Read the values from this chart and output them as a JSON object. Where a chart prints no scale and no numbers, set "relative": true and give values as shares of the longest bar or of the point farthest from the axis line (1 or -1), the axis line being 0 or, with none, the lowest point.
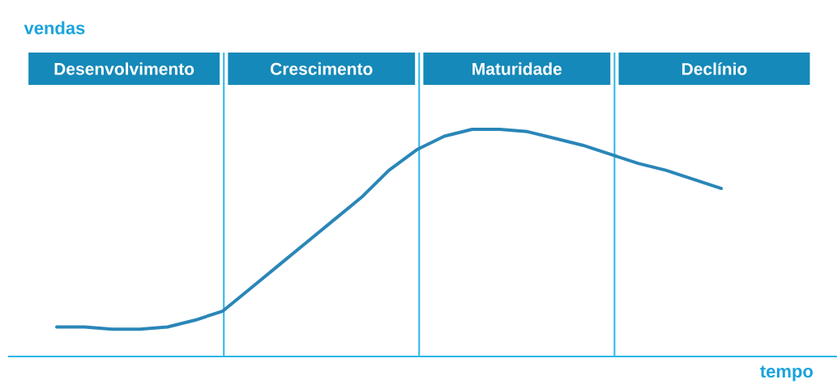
{
  "chart_data": {
    "type": "line",
    "relative": true,
    "xlabel": "tempo",
    "color": "#2a86b8",
    "line_style": "solid",
    "categories": [
      null,
      null,
      null,
      null,
      null,
      null,
      null,
      null,
      null,
      null,
      null,
      null,
      null,
      null,
      null,
      null,
      null,
      null,
      null,
      null,
      null,
      null,
      null,
      null,
      null
    ],
    "values": [
      0.13,
      0.13,
      0.12,
      0.12,
      0.13,
      0.16,
      0.2,
      0.3,
      0.4,
      0.5,
      0.6,
      0.7,
      0.82,
      0.91,
      0.97,
      1.0,
      1.0,
      0.99,
      0.96,
      0.93,
      0.89,
      0.85,
      0.82,
      0.78,
      0.74
    ],
    "annotations": [
      "vendas",
      "Desenvolvimento",
      "Crescimento",
      "Maturidade",
      "Declínio"
    ]
  }
}
